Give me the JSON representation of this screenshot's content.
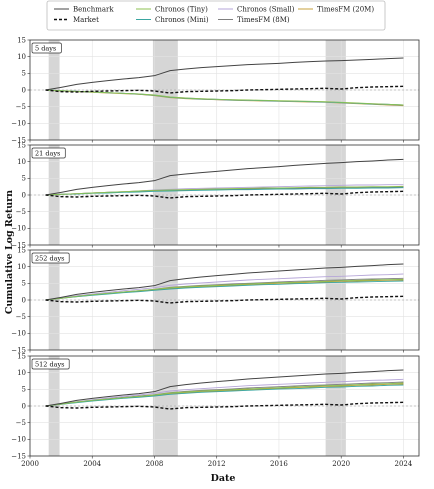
{
  "chart_data": {
    "type": "line",
    "xlabel": "Date",
    "ylabel": "Cumulative Log Return",
    "xlim": [
      2000,
      2025
    ],
    "ylim": [
      -15,
      15
    ],
    "x_ticks": [
      "2000",
      "2004",
      "2008",
      "2012",
      "2016",
      "2020",
      "2024"
    ],
    "y_ticks": [
      "15",
      "10",
      "5",
      "0",
      "−5",
      "−10",
      "−15"
    ],
    "grid": true,
    "legend_position": "top-center",
    "recession_shading": [
      [
        2001.2,
        2001.9
      ],
      [
        2007.9,
        2009.5
      ],
      [
        2019.0,
        2020.3
      ]
    ],
    "series_styles": [
      {
        "name": "Benchmark",
        "color": "#444444",
        "dash": "solid"
      },
      {
        "name": "Market",
        "color": "#111111",
        "dash": "dashed"
      },
      {
        "name": "Chronos (Tiny)",
        "color": "#8cc152",
        "dash": "solid"
      },
      {
        "name": "Chronos (Mini)",
        "color": "#3aa6a0",
        "dash": "solid"
      },
      {
        "name": "Chronos (Small)",
        "color": "#b6a6d8",
        "dash": "solid"
      },
      {
        "name": "TimesFM (8M)",
        "color": "#7f7f7f",
        "dash": "solid"
      },
      {
        "name": "TimesFM (20M)",
        "color": "#c7a13c",
        "dash": "solid"
      }
    ],
    "x": [
      2001,
      2002,
      2003,
      2004,
      2005,
      2006,
      2007,
      2008,
      2009,
      2010,
      2011,
      2012,
      2013,
      2014,
      2015,
      2016,
      2017,
      2018,
      2019,
      2020,
      2021,
      2022,
      2023,
      2024
    ],
    "panels": [
      {
        "label": "5 days",
        "series": [
          {
            "name": "Benchmark",
            "values": [
              0,
              0.8,
              1.7,
              2.3,
              2.8,
              3.3,
              3.7,
              4.3,
              5.8,
              6.3,
              6.7,
              7.0,
              7.3,
              7.6,
              7.8,
              8.0,
              8.3,
              8.5,
              8.7,
              8.8,
              9.0,
              9.2,
              9.4,
              9.6
            ]
          },
          {
            "name": "Market",
            "values": [
              0,
              -0.5,
              -0.6,
              -0.4,
              -0.3,
              -0.2,
              -0.1,
              -0.3,
              -0.9,
              -0.5,
              -0.4,
              -0.3,
              -0.2,
              0.0,
              0.1,
              0.2,
              0.3,
              0.4,
              0.5,
              0.3,
              0.7,
              0.9,
              1.0,
              1.1
            ]
          },
          {
            "name": "Chronos (Tiny)",
            "values": [
              0,
              -0.2,
              -0.4,
              -0.6,
              -0.8,
              -1.0,
              -1.2,
              -1.5,
              -2.1,
              -2.4,
              -2.6,
              -2.8,
              -2.9,
              -3.0,
              -3.1,
              -3.2,
              -3.3,
              -3.4,
              -3.5,
              -3.7,
              -3.9,
              -4.1,
              -4.3,
              -4.5
            ]
          },
          {
            "name": "Chronos (Mini)",
            "values": [
              0,
              -0.2,
              -0.4,
              -0.6,
              -0.8,
              -1.0,
              -1.2,
              -1.6,
              -2.2,
              -2.5,
              -2.7,
              -2.8,
              -3.0,
              -3.1,
              -3.2,
              -3.3,
              -3.4,
              -3.5,
              -3.6,
              -3.8,
              -4.0,
              -4.2,
              -4.3,
              -4.5
            ]
          },
          {
            "name": "Chronos (Small)",
            "values": [
              0,
              -0.2,
              -0.4,
              -0.6,
              -0.8,
              -1.0,
              -1.2,
              -1.5,
              -2.1,
              -2.4,
              -2.6,
              -2.8,
              -2.9,
              -3.1,
              -3.2,
              -3.3,
              -3.4,
              -3.5,
              -3.6,
              -3.8,
              -4.0,
              -4.1,
              -4.3,
              -4.5
            ]
          },
          {
            "name": "TimesFM (8M)",
            "values": [
              0,
              -0.2,
              -0.4,
              -0.6,
              -0.8,
              -1.0,
              -1.3,
              -1.6,
              -2.2,
              -2.5,
              -2.7,
              -2.9,
              -3.0,
              -3.1,
              -3.2,
              -3.3,
              -3.4,
              -3.5,
              -3.6,
              -3.8,
              -4.0,
              -4.2,
              -4.4,
              -4.6
            ]
          },
          {
            "name": "TimesFM (20M)",
            "values": [
              0,
              -0.3,
              -0.5,
              -0.7,
              -0.9,
              -1.1,
              -1.3,
              -1.7,
              -2.3,
              -2.6,
              -2.8,
              -2.9,
              -3.1,
              -3.2,
              -3.3,
              -3.4,
              -3.5,
              -3.6,
              -3.7,
              -3.9,
              -4.1,
              -4.3,
              -4.5,
              -4.7
            ]
          }
        ]
      },
      {
        "label": "21 days",
        "series": [
          {
            "name": "Benchmark",
            "values": [
              0,
              0.8,
              1.7,
              2.3,
              2.8,
              3.3,
              3.7,
              4.3,
              5.8,
              6.3,
              6.7,
              7.1,
              7.5,
              7.9,
              8.2,
              8.5,
              8.9,
              9.2,
              9.5,
              9.7,
              10.0,
              10.2,
              10.5,
              10.7
            ]
          },
          {
            "name": "Market",
            "values": [
              0,
              -0.5,
              -0.6,
              -0.4,
              -0.3,
              -0.2,
              -0.1,
              -0.3,
              -0.9,
              -0.5,
              -0.4,
              -0.3,
              -0.2,
              0.0,
              0.1,
              0.2,
              0.3,
              0.4,
              0.5,
              0.3,
              0.7,
              0.9,
              1.0,
              1.1
            ]
          },
          {
            "name": "Chronos (Tiny)",
            "values": [
              0,
              0.2,
              0.4,
              0.6,
              0.8,
              1.0,
              1.2,
              1.4,
              1.5,
              1.6,
              1.7,
              1.8,
              1.9,
              2.0,
              2.1,
              2.1,
              2.2,
              2.3,
              2.3,
              2.4,
              2.4,
              2.5,
              2.5,
              2.6
            ]
          },
          {
            "name": "Chronos (Mini)",
            "values": [
              0,
              0.2,
              0.3,
              0.5,
              0.6,
              0.8,
              0.9,
              1.1,
              1.2,
              1.3,
              1.4,
              1.5,
              1.6,
              1.6,
              1.7,
              1.8,
              1.8,
              1.9,
              1.9,
              2.0,
              2.0,
              2.1,
              2.1,
              2.2
            ]
          },
          {
            "name": "Chronos (Small)",
            "values": [
              0,
              0.2,
              0.4,
              0.6,
              0.8,
              1.0,
              1.2,
              1.5,
              1.7,
              1.9,
              2.0,
              2.1,
              2.2,
              2.3,
              2.4,
              2.5,
              2.6,
              2.7,
              2.8,
              2.9,
              3.0,
              3.0,
              3.1,
              3.1
            ]
          },
          {
            "name": "TimesFM (8M)",
            "values": [
              0,
              0.2,
              0.4,
              0.6,
              0.8,
              0.9,
              1.1,
              1.3,
              1.4,
              1.5,
              1.6,
              1.7,
              1.8,
              1.8,
              1.9,
              2.0,
              2.0,
              2.1,
              2.1,
              2.2,
              2.2,
              2.3,
              2.3,
              2.4
            ]
          },
          {
            "name": "TimesFM (20M)",
            "values": [
              0,
              0.2,
              0.4,
              0.6,
              0.8,
              1.0,
              1.2,
              1.4,
              1.5,
              1.6,
              1.7,
              1.8,
              1.9,
              1.9,
              2.0,
              2.1,
              2.1,
              2.2,
              2.2,
              2.3,
              2.3,
              2.4,
              2.4,
              2.5
            ]
          }
        ]
      },
      {
        "label": "252 days",
        "series": [
          {
            "name": "Benchmark",
            "values": [
              0,
              0.8,
              1.7,
              2.3,
              2.8,
              3.3,
              3.7,
              4.3,
              5.8,
              6.4,
              6.9,
              7.3,
              7.7,
              8.1,
              8.4,
              8.7,
              9.0,
              9.3,
              9.6,
              9.8,
              10.1,
              10.3,
              10.6,
              10.8
            ]
          },
          {
            "name": "Market",
            "values": [
              0,
              -0.5,
              -0.6,
              -0.4,
              -0.3,
              -0.2,
              -0.1,
              -0.3,
              -0.9,
              -0.5,
              -0.4,
              -0.3,
              -0.2,
              0.0,
              0.1,
              0.2,
              0.3,
              0.4,
              0.5,
              0.3,
              0.7,
              0.9,
              1.0,
              1.1
            ]
          },
          {
            "name": "Chronos (Tiny)",
            "values": [
              0,
              0.5,
              1.1,
              1.6,
              2.0,
              2.4,
              2.8,
              3.2,
              3.7,
              4.0,
              4.2,
              4.4,
              4.6,
              4.8,
              5.0,
              5.2,
              5.3,
              5.5,
              5.6,
              5.8,
              5.9,
              6.0,
              6.1,
              6.2
            ]
          },
          {
            "name": "Chronos (Mini)",
            "values": [
              0,
              0.5,
              1.0,
              1.4,
              1.8,
              2.2,
              2.5,
              2.9,
              3.3,
              3.6,
              3.8,
              4.0,
              4.2,
              4.4,
              4.6,
              4.7,
              4.9,
              5.0,
              5.2,
              5.3,
              5.4,
              5.5,
              5.6,
              5.7
            ]
          },
          {
            "name": "Chronos (Small)",
            "values": [
              0,
              0.6,
              1.3,
              1.8,
              2.3,
              2.8,
              3.2,
              3.7,
              4.4,
              4.8,
              5.1,
              5.4,
              5.7,
              6.0,
              6.2,
              6.4,
              6.6,
              6.8,
              7.0,
              7.1,
              7.3,
              7.5,
              7.6,
              7.8
            ]
          },
          {
            "name": "TimesFM (8M)",
            "values": [
              0,
              0.5,
              1.1,
              1.6,
              2.0,
              2.4,
              2.8,
              3.2,
              3.8,
              4.1,
              4.4,
              4.6,
              4.8,
              5.0,
              5.2,
              5.4,
              5.6,
              5.7,
              5.9,
              6.0,
              6.2,
              6.3,
              6.4,
              6.5
            ]
          },
          {
            "name": "TimesFM (20M)",
            "values": [
              0,
              0.5,
              1.0,
              1.5,
              1.9,
              2.3,
              2.6,
              3.0,
              3.5,
              3.8,
              4.0,
              4.2,
              4.4,
              4.6,
              4.8,
              5.0,
              5.1,
              5.3,
              5.4,
              5.5,
              5.7,
              5.8,
              5.9,
              6.0
            ]
          }
        ]
      },
      {
        "label": "512 days",
        "series": [
          {
            "name": "Benchmark",
            "values": [
              0,
              0.8,
              1.7,
              2.3,
              2.8,
              3.3,
              3.7,
              4.3,
              5.8,
              6.4,
              6.9,
              7.3,
              7.7,
              8.1,
              8.4,
              8.7,
              9.0,
              9.3,
              9.6,
              9.8,
              10.1,
              10.3,
              10.6,
              10.8
            ]
          },
          {
            "name": "Market",
            "values": [
              0,
              -0.5,
              -0.6,
              -0.4,
              -0.3,
              -0.2,
              -0.1,
              -0.3,
              -0.9,
              -0.5,
              -0.4,
              -0.3,
              -0.2,
              0.0,
              0.1,
              0.2,
              0.3,
              0.4,
              0.5,
              0.3,
              0.7,
              0.9,
              1.0,
              1.1
            ]
          },
          {
            "name": "Chronos (Tiny)",
            "values": [
              0,
              0.6,
              1.2,
              1.7,
              2.1,
              2.5,
              2.9,
              3.3,
              3.9,
              4.2,
              4.5,
              4.7,
              4.9,
              5.1,
              5.3,
              5.5,
              5.7,
              5.9,
              6.1,
              6.2,
              6.4,
              6.6,
              6.7,
              6.9
            ]
          },
          {
            "name": "Chronos (Mini)",
            "values": [
              0,
              0.5,
              1.0,
              1.5,
              1.9,
              2.3,
              2.6,
              3.0,
              3.5,
              3.8,
              4.1,
              4.3,
              4.5,
              4.7,
              4.9,
              5.1,
              5.2,
              5.4,
              5.6,
              5.7,
              5.9,
              6.0,
              6.2,
              6.3
            ]
          },
          {
            "name": "Chronos (Small)",
            "values": [
              0,
              0.6,
              1.3,
              1.9,
              2.4,
              2.9,
              3.3,
              3.8,
              4.5,
              4.9,
              5.2,
              5.5,
              5.8,
              6.1,
              6.3,
              6.5,
              6.7,
              6.9,
              7.1,
              7.3,
              7.5,
              7.7,
              7.8,
              8.0
            ]
          },
          {
            "name": "TimesFM (8M)",
            "values": [
              0,
              0.6,
              1.2,
              1.7,
              2.2,
              2.6,
              3.0,
              3.4,
              4.0,
              4.4,
              4.7,
              4.9,
              5.1,
              5.4,
              5.6,
              5.8,
              6.0,
              6.2,
              6.3,
              6.5,
              6.7,
              6.9,
              7.0,
              7.2
            ]
          },
          {
            "name": "TimesFM (20M)",
            "values": [
              0,
              0.5,
              1.1,
              1.6,
              2.0,
              2.4,
              2.8,
              3.2,
              3.7,
              4.0,
              4.3,
              4.5,
              4.7,
              4.9,
              5.1,
              5.3,
              5.5,
              5.7,
              5.8,
              6.0,
              6.2,
              6.3,
              6.5,
              6.6
            ]
          }
        ]
      }
    ]
  }
}
